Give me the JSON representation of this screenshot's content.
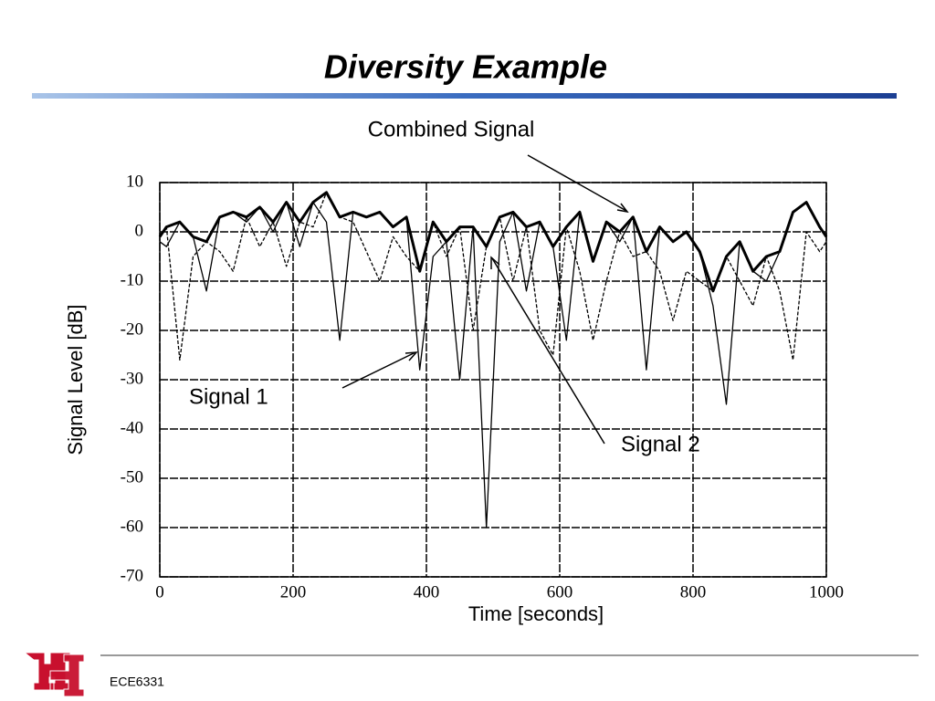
{
  "chart_data": {
    "type": "line",
    "title": "Diversity Example",
    "xlabel": "Time [seconds]",
    "ylabel": "Signal Level [dB]",
    "x": [
      0,
      10,
      30,
      50,
      70,
      90,
      110,
      130,
      150,
      170,
      190,
      210,
      230,
      250,
      270,
      290,
      310,
      330,
      350,
      370,
      390,
      410,
      430,
      450,
      470,
      490,
      510,
      530,
      550,
      570,
      590,
      610,
      630,
      650,
      670,
      690,
      710,
      730,
      750,
      770,
      790,
      810,
      830,
      850,
      870,
      890,
      910,
      930,
      950,
      970,
      990,
      1000
    ],
    "series": [
      {
        "name": "Signal 1",
        "color": "#000000",
        "line_style": "solid",
        "values": [
          -2,
          -3,
          2,
          -1,
          -12,
          3,
          4,
          2,
          5,
          0,
          6,
          -3,
          6,
          2,
          -22,
          4,
          3,
          4,
          1,
          3,
          -28,
          -5,
          -2,
          -30,
          1,
          -60,
          -2,
          4,
          -12,
          2,
          -3,
          -22,
          4,
          -6,
          2,
          -2,
          3,
          -28,
          1,
          -2,
          0,
          -4,
          -15,
          -35,
          -2,
          -8,
          -10,
          -4,
          4,
          6,
          1,
          -1
        ]
      },
      {
        "name": "Signal 2",
        "color": "#000000",
        "line_style": "dashed",
        "values": [
          -1,
          1,
          -26,
          -5,
          -2,
          -4,
          -8,
          3,
          -3,
          2,
          -7,
          2,
          1,
          8,
          3,
          2,
          -4,
          -10,
          -1,
          -5,
          -8,
          2,
          -5,
          1,
          -20,
          -3,
          3,
          -10,
          1,
          -20,
          -25,
          1,
          -8,
          -22,
          -10,
          0,
          -5,
          -4,
          -8,
          -18,
          -8,
          -10,
          -12,
          -5,
          -10,
          -15,
          -5,
          -12,
          -26,
          0,
          -4,
          -2
        ]
      },
      {
        "name": "Combined Signal",
        "color": "#000000",
        "line_style": "bold",
        "values": [
          -1,
          1,
          2,
          -1,
          -2,
          3,
          4,
          3,
          5,
          2,
          6,
          2,
          6,
          8,
          3,
          4,
          3,
          4,
          1,
          3,
          -8,
          2,
          -2,
          1,
          1,
          -3,
          3,
          4,
          1,
          2,
          -3,
          1,
          4,
          -6,
          2,
          0,
          3,
          -4,
          1,
          -2,
          0,
          -4,
          -12,
          -5,
          -2,
          -8,
          -5,
          -4,
          4,
          6,
          1,
          -1
        ]
      }
    ],
    "xlim": [
      0,
      1000
    ],
    "xticks": [
      0,
      200,
      400,
      600,
      800,
      1000
    ],
    "ylim": [
      -70,
      10
    ],
    "yticks": [
      10,
      0,
      -10,
      -20,
      -30,
      -40,
      -50,
      -60,
      -70
    ],
    "grid": true
  },
  "footer": "ECE6331"
}
